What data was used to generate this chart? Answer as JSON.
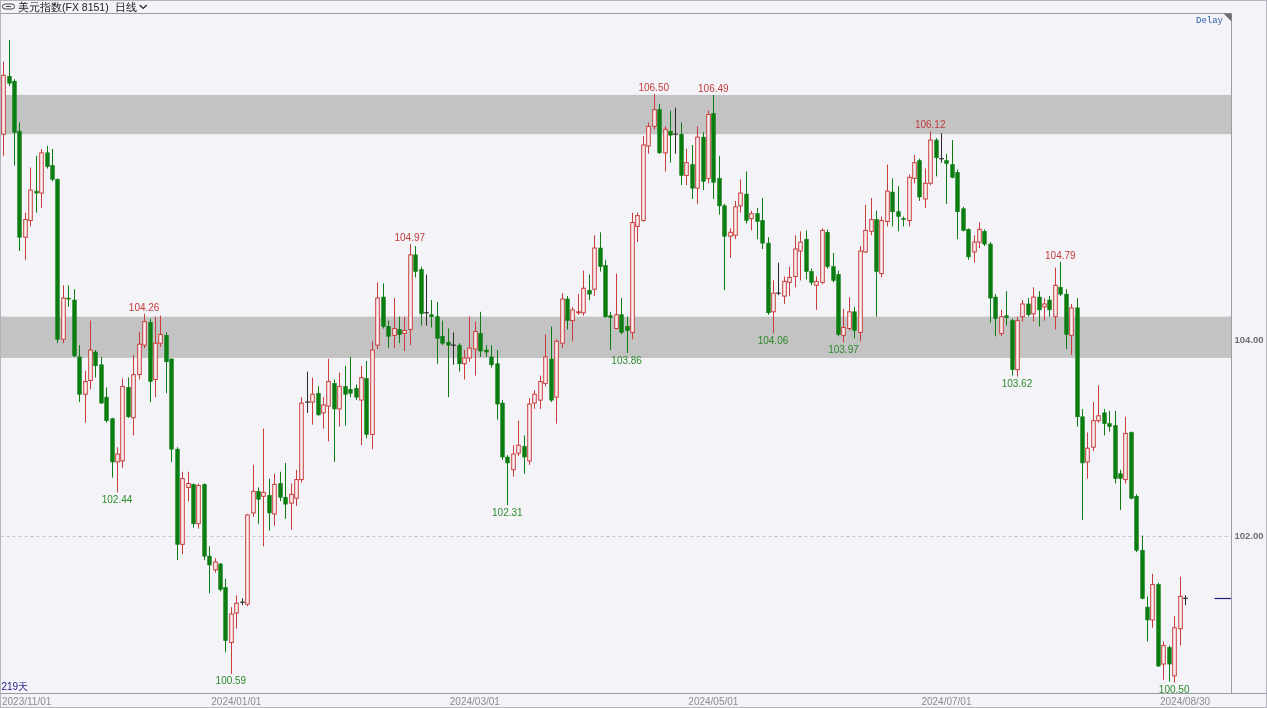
{
  "chart_data": {
    "type": "candlestick",
    "title": "美元指数(FX 8151)",
    "subtitle": "日线",
    "categories": [
      null,
      null,
      null,
      null,
      "2023/11/01",
      null,
      null,
      null,
      null,
      null,
      null,
      null,
      null,
      null,
      null,
      null,
      null,
      null,
      null,
      null,
      null,
      null,
      null,
      null,
      null,
      null,
      null,
      null,
      null,
      null,
      null,
      null,
      null,
      null,
      null,
      null,
      null,
      null,
      null,
      null,
      null,
      null,
      null,
      "2024/01/01",
      null,
      null,
      null,
      null,
      null,
      null,
      null,
      null,
      null,
      null,
      null,
      null,
      null,
      null,
      null,
      null,
      null,
      null,
      null,
      null,
      null,
      null,
      null,
      null,
      null,
      null,
      null,
      null,
      null,
      null,
      null,
      null,
      null,
      null,
      null,
      null,
      null,
      null,
      null,
      null,
      null,
      null,
      null,
      "2024/03/01",
      null,
      null,
      null,
      null,
      null,
      null,
      null,
      null,
      null,
      null,
      null,
      null,
      null,
      null,
      null,
      null,
      null,
      null,
      null,
      null,
      null,
      null,
      null,
      null,
      null,
      null,
      null,
      null,
      null,
      null,
      null,
      null,
      null,
      null,
      null,
      null,
      null,
      null,
      null,
      null,
      null,
      null,
      null,
      "2024/05/01",
      null,
      null,
      null,
      null,
      null,
      null,
      null,
      null,
      null,
      null,
      null,
      null,
      null,
      null,
      null,
      null,
      null,
      null,
      null,
      null,
      null,
      null,
      null,
      null,
      null,
      null,
      null,
      null,
      null,
      null,
      null,
      null,
      null,
      null,
      null,
      null,
      null,
      null,
      null,
      null,
      null,
      null,
      "2024/07/01",
      null,
      null,
      null,
      null,
      null,
      null,
      null,
      null,
      null,
      null,
      null,
      null,
      null,
      null,
      null,
      null,
      null,
      null,
      null,
      null,
      null,
      null,
      null,
      null,
      null,
      null,
      null,
      null,
      null,
      null,
      null,
      null,
      null,
      null,
      null,
      null,
      null,
      null,
      null,
      null,
      null,
      null,
      null,
      "2024/08/30"
    ],
    "ohlc": [
      [
        106.09,
        106.83,
        105.87,
        106.69
      ],
      [
        106.68,
        107.05,
        106.58,
        106.61
      ],
      [
        106.63,
        106.65,
        105.77,
        106.11
      ],
      [
        106.12,
        106.21,
        104.9,
        105.04
      ],
      [
        105.04,
        105.29,
        104.81,
        105.22
      ],
      [
        105.21,
        105.75,
        105.15,
        105.52
      ],
      [
        105.51,
        105.87,
        105.29,
        105.49
      ],
      [
        105.49,
        105.94,
        105.34,
        105.9
      ],
      [
        105.9,
        105.97,
        105.74,
        105.76
      ],
      [
        105.77,
        105.94,
        105.61,
        105.63
      ],
      [
        105.63,
        105.64,
        103.96,
        104.0
      ],
      [
        104.0,
        104.55,
        103.96,
        104.42
      ],
      [
        104.42,
        104.55,
        104.33,
        104.41
      ],
      [
        104.4,
        104.51,
        103.82,
        103.83
      ],
      [
        103.82,
        103.94,
        103.36,
        103.44
      ],
      [
        103.44,
        103.68,
        103.15,
        103.57
      ],
      [
        103.58,
        104.19,
        103.49,
        103.89
      ],
      [
        103.87,
        103.89,
        103.61,
        103.73
      ],
      [
        103.74,
        103.82,
        103.34,
        103.35
      ],
      [
        103.41,
        103.51,
        103.15,
        103.17
      ],
      [
        103.19,
        103.2,
        102.59,
        102.75
      ],
      [
        102.75,
        102.9,
        102.44,
        102.83
      ],
      [
        102.76,
        103.6,
        102.69,
        103.52
      ],
      [
        103.51,
        103.61,
        103.2,
        103.21
      ],
      [
        103.2,
        103.84,
        103.02,
        103.64
      ],
      [
        103.64,
        104.07,
        103.59,
        103.95
      ],
      [
        103.94,
        104.26,
        103.91,
        104.18
      ],
      [
        104.17,
        104.21,
        103.36,
        103.57
      ],
      [
        103.59,
        104.23,
        103.41,
        103.96
      ],
      [
        103.96,
        104.24,
        103.92,
        104.05
      ],
      [
        104.04,
        104.07,
        103.45,
        103.77
      ],
      [
        103.8,
        103.8,
        102.75,
        102.88
      ],
      [
        102.88,
        102.9,
        101.75,
        101.91
      ],
      [
        101.91,
        102.65,
        101.81,
        102.58
      ],
      [
        102.49,
        102.65,
        102.35,
        102.53
      ],
      [
        102.52,
        102.53,
        102.08,
        102.12
      ],
      [
        102.12,
        102.53,
        102.07,
        102.51
      ],
      [
        102.52,
        102.53,
        101.75,
        101.79
      ],
      [
        101.79,
        101.89,
        101.41,
        101.7
      ],
      [
        101.65,
        101.77,
        101.62,
        101.73
      ],
      [
        101.71,
        101.72,
        101.43,
        101.45
      ],
      [
        101.47,
        101.56,
        100.81,
        100.93
      ],
      [
        100.91,
        101.27,
        100.59,
        101.2
      ],
      [
        101.21,
        101.39,
        101.05,
        101.31
      ],
      [
        101.32,
        101.36,
        101.29,
        101.32
      ],
      [
        101.3,
        102.22,
        101.28,
        102.21
      ],
      [
        102.23,
        102.72,
        102.19,
        102.45
      ],
      [
        102.45,
        102.49,
        102.12,
        102.37
      ],
      [
        102.4,
        103.09,
        101.89,
        102.44
      ],
      [
        102.41,
        102.58,
        102.05,
        102.23
      ],
      [
        102.22,
        102.63,
        102.1,
        102.52
      ],
      [
        102.53,
        102.65,
        102.35,
        102.39
      ],
      [
        102.39,
        102.74,
        102.17,
        102.32
      ],
      [
        102.33,
        102.53,
        102.06,
        102.42
      ],
      [
        102.38,
        102.67,
        102.3,
        102.57
      ],
      [
        102.57,
        103.41,
        102.54,
        103.35
      ],
      [
        103.36,
        103.67,
        103.25,
        103.36
      ],
      [
        103.36,
        103.61,
        103.13,
        103.44
      ],
      [
        103.45,
        103.52,
        103.22,
        103.23
      ],
      [
        103.25,
        103.41,
        103.09,
        103.33
      ],
      [
        103.32,
        103.8,
        102.96,
        103.57
      ],
      [
        103.55,
        103.59,
        102.75,
        103.29
      ],
      [
        103.29,
        103.66,
        103.11,
        103.52
      ],
      [
        103.52,
        103.73,
        103.12,
        103.44
      ],
      [
        103.49,
        103.82,
        103.41,
        103.45
      ],
      [
        103.5,
        103.54,
        103.38,
        103.41
      ],
      [
        103.38,
        103.73,
        102.92,
        103.61
      ],
      [
        103.6,
        103.78,
        102.99,
        103.03
      ],
      [
        103.03,
        103.98,
        102.88,
        103.89
      ],
      [
        103.94,
        104.58,
        103.9,
        104.42
      ],
      [
        104.43,
        104.57,
        104.11,
        104.13
      ],
      [
        104.13,
        104.19,
        103.91,
        104.03
      ],
      [
        104.04,
        104.42,
        103.91,
        104.11
      ],
      [
        104.1,
        104.23,
        103.96,
        104.05
      ],
      [
        104.06,
        104.23,
        103.88,
        104.09
      ],
      [
        104.1,
        104.97,
        103.94,
        104.86
      ],
      [
        104.86,
        104.95,
        104.63,
        104.69
      ],
      [
        104.71,
        104.74,
        104.14,
        104.26
      ],
      [
        104.27,
        104.66,
        104.14,
        104.27
      ],
      [
        104.25,
        104.4,
        104.12,
        104.23
      ],
      [
        104.23,
        104.38,
        103.75,
        104.01
      ],
      [
        104.03,
        104.19,
        103.94,
        103.96
      ],
      [
        103.97,
        104.11,
        103.41,
        103.94
      ],
      [
        103.94,
        104.07,
        103.74,
        103.94
      ],
      [
        103.94,
        103.96,
        103.67,
        103.75
      ],
      [
        103.75,
        103.89,
        103.59,
        103.81
      ],
      [
        103.81,
        104.23,
        103.77,
        103.91
      ],
      [
        103.9,
        104.18,
        103.63,
        104.08
      ],
      [
        104.06,
        104.28,
        103.82,
        103.88
      ],
      [
        103.89,
        103.94,
        103.82,
        103.87
      ],
      [
        103.82,
        103.94,
        103.71,
        103.74
      ],
      [
        103.75,
        103.89,
        103.18,
        103.34
      ],
      [
        103.35,
        103.38,
        102.77,
        102.8
      ],
      [
        102.8,
        102.82,
        102.31,
        102.74
      ],
      [
        102.67,
        102.92,
        102.6,
        102.83
      ],
      [
        102.84,
        103.17,
        102.81,
        102.92
      ],
      [
        102.91,
        103.02,
        102.63,
        102.8
      ],
      [
        102.76,
        103.4,
        102.72,
        103.34
      ],
      [
        103.35,
        103.48,
        103.29,
        103.44
      ],
      [
        103.38,
        103.63,
        103.29,
        103.57
      ],
      [
        103.55,
        104.05,
        103.52,
        103.82
      ],
      [
        103.8,
        104.13,
        103.36,
        103.38
      ],
      [
        103.41,
        104.0,
        103.14,
        103.98
      ],
      [
        103.96,
        104.47,
        103.91,
        104.41
      ],
      [
        104.41,
        104.44,
        104.1,
        104.19
      ],
      [
        104.19,
        104.33,
        103.98,
        104.3
      ],
      [
        104.27,
        104.46,
        104.25,
        104.28
      ],
      [
        104.27,
        104.7,
        104.24,
        104.52
      ],
      [
        104.5,
        104.66,
        104.4,
        104.46
      ],
      [
        104.51,
        105.06,
        104.44,
        104.93
      ],
      [
        104.93,
        105.09,
        104.69,
        104.74
      ],
      [
        104.75,
        104.81,
        104.22,
        104.23
      ],
      [
        104.24,
        104.28,
        103.89,
        104.22
      ],
      [
        104.11,
        104.67,
        104.1,
        104.25
      ],
      [
        104.25,
        104.42,
        104.05,
        104.07
      ],
      [
        104.13,
        104.23,
        103.86,
        104.09
      ],
      [
        104.07,
        105.29,
        104.0,
        105.19
      ],
      [
        105.15,
        105.29,
        104.99,
        105.26
      ],
      [
        105.21,
        106.07,
        105.2,
        105.98
      ],
      [
        105.97,
        106.21,
        105.89,
        106.17
      ],
      [
        106.17,
        106.5,
        106.14,
        106.34
      ],
      [
        106.34,
        106.4,
        105.89,
        105.9
      ],
      [
        105.9,
        106.17,
        105.71,
        106.14
      ],
      [
        106.12,
        106.33,
        105.8,
        106.08
      ],
      [
        106.09,
        106.36,
        105.89,
        106.09
      ],
      [
        106.09,
        106.21,
        105.57,
        105.67
      ],
      [
        105.67,
        105.94,
        105.57,
        105.8
      ],
      [
        105.78,
        105.98,
        105.43,
        105.54
      ],
      [
        105.54,
        106.17,
        105.38,
        106.06
      ],
      [
        106.06,
        106.11,
        105.52,
        105.61
      ],
      [
        105.64,
        106.33,
        105.59,
        106.29
      ],
      [
        106.3,
        106.49,
        105.43,
        105.6
      ],
      [
        105.64,
        105.87,
        105.27,
        105.36
      ],
      [
        105.36,
        105.38,
        104.5,
        105.05
      ],
      [
        105.05,
        105.13,
        104.83,
        105.09
      ],
      [
        105.06,
        105.41,
        105.02,
        105.35
      ],
      [
        105.36,
        105.63,
        105.29,
        105.49
      ],
      [
        105.48,
        105.71,
        105.18,
        105.21
      ],
      [
        105.23,
        105.31,
        105.11,
        105.28
      ],
      [
        105.28,
        105.34,
        105.02,
        105.2
      ],
      [
        105.21,
        105.44,
        104.92,
        104.98
      ],
      [
        104.98,
        105.04,
        104.25,
        104.27
      ],
      [
        104.28,
        104.6,
        104.06,
        104.47
      ],
      [
        104.47,
        104.78,
        104.45,
        104.47
      ],
      [
        104.44,
        104.64,
        104.36,
        104.59
      ],
      [
        104.58,
        104.74,
        104.44,
        104.63
      ],
      [
        104.64,
        105.06,
        104.53,
        104.92
      ],
      [
        104.9,
        105.1,
        104.6,
        104.99
      ],
      [
        105.02,
        105.11,
        104.61,
        104.69
      ],
      [
        104.69,
        104.72,
        104.55,
        104.58
      ],
      [
        104.55,
        104.64,
        104.3,
        104.59
      ],
      [
        104.58,
        105.13,
        104.56,
        105.11
      ],
      [
        105.09,
        105.12,
        104.72,
        104.74
      ],
      [
        104.74,
        104.88,
        104.58,
        104.6
      ],
      [
        104.66,
        104.7,
        104.03,
        104.05
      ],
      [
        104.04,
        104.31,
        103.97,
        104.12
      ],
      [
        104.11,
        104.43,
        104.09,
        104.28
      ],
      [
        104.28,
        104.33,
        104.01,
        104.09
      ],
      [
        104.07,
        104.95,
        103.98,
        104.9
      ],
      [
        104.89,
        105.37,
        104.88,
        105.11
      ],
      [
        105.1,
        105.44,
        105.06,
        105.22
      ],
      [
        105.22,
        105.31,
        104.23,
        104.69
      ],
      [
        104.67,
        105.25,
        104.63,
        105.21
      ],
      [
        105.2,
        105.78,
        105.15,
        105.51
      ],
      [
        105.5,
        105.64,
        105.15,
        105.3
      ],
      [
        105.3,
        105.56,
        105.1,
        105.25
      ],
      [
        105.23,
        105.25,
        105.15,
        105.22
      ],
      [
        105.21,
        105.68,
        105.15,
        105.65
      ],
      [
        105.64,
        105.88,
        105.59,
        105.8
      ],
      [
        105.82,
        105.84,
        105.41,
        105.45
      ],
      [
        105.43,
        105.74,
        105.34,
        105.59
      ],
      [
        105.59,
        106.12,
        105.57,
        106.03
      ],
      [
        106.03,
        106.05,
        105.66,
        105.85
      ],
      [
        105.84,
        106.1,
        105.8,
        105.84
      ],
      [
        105.82,
        105.89,
        105.38,
        105.79
      ],
      [
        105.78,
        106.03,
        105.64,
        105.65
      ],
      [
        105.7,
        105.73,
        105.02,
        105.3
      ],
      [
        105.33,
        105.35,
        105.1,
        105.11
      ],
      [
        105.12,
        105.13,
        104.81,
        104.84
      ],
      [
        104.89,
        105.06,
        104.78,
        104.99
      ],
      [
        104.99,
        105.19,
        104.93,
        105.12
      ],
      [
        105.1,
        105.12,
        104.95,
        104.97
      ],
      [
        104.97,
        104.99,
        104.17,
        104.42
      ],
      [
        104.43,
        104.46,
        104.03,
        104.21
      ],
      [
        104.06,
        104.3,
        104.03,
        104.23
      ],
      [
        104.24,
        104.49,
        104.14,
        104.22
      ],
      [
        104.19,
        104.21,
        103.63,
        103.69
      ],
      [
        103.69,
        104.23,
        103.62,
        104.19
      ],
      [
        104.23,
        104.4,
        104.18,
        104.36
      ],
      [
        104.36,
        104.42,
        104.23,
        104.25
      ],
      [
        104.26,
        104.53,
        104.18,
        104.43
      ],
      [
        104.43,
        104.49,
        104.13,
        104.3
      ],
      [
        104.33,
        104.42,
        104.19,
        104.36
      ],
      [
        104.4,
        104.44,
        104.23,
        104.3
      ],
      [
        104.23,
        104.73,
        104.1,
        104.55
      ],
      [
        104.53,
        104.79,
        104.44,
        104.46
      ],
      [
        104.46,
        104.51,
        103.9,
        104.05
      ],
      [
        104.04,
        104.36,
        103.84,
        104.32
      ],
      [
        104.32,
        104.42,
        103.11,
        103.21
      ],
      [
        103.21,
        103.29,
        102.16,
        102.74
      ],
      [
        102.75,
        103.05,
        102.58,
        102.89
      ],
      [
        102.9,
        103.36,
        102.86,
        103.17
      ],
      [
        103.17,
        103.53,
        103.15,
        103.22
      ],
      [
        103.25,
        103.29,
        103.02,
        103.14
      ],
      [
        103.14,
        103.27,
        103.06,
        103.11
      ],
      [
        103.12,
        103.27,
        102.53,
        102.58
      ],
      [
        102.63,
        102.67,
        102.26,
        102.58
      ],
      [
        102.57,
        103.21,
        102.53,
        103.04
      ],
      [
        103.05,
        103.06,
        102.37,
        102.38
      ],
      [
        102.4,
        102.42,
        101.83,
        101.85
      ],
      [
        101.85,
        102.0,
        101.35,
        101.36
      ],
      [
        101.27,
        101.38,
        100.92,
        101.14
      ],
      [
        101.14,
        101.61,
        101.06,
        101.5
      ],
      [
        101.5,
        101.52,
        100.66,
        100.67
      ],
      [
        100.69,
        100.92,
        100.53,
        100.88
      ],
      [
        100.86,
        100.88,
        100.51,
        100.69
      ],
      [
        100.57,
        101.18,
        100.5,
        101.06
      ],
      [
        101.05,
        101.58,
        100.88,
        101.38
      ],
      [
        101.36,
        101.39,
        101.29,
        101.36
      ]
    ],
    "ylim": [
      100.39,
      107.32
    ],
    "yticks": [
      {
        "value": 102,
        "label": "102.00"
      },
      {
        "value": 104,
        "label": "104.00"
      }
    ],
    "grid": "y",
    "bands": [
      {
        "axis": "y",
        "from": 106.09,
        "to": 106.49,
        "color": "#c3c3c3"
      },
      {
        "axis": "y",
        "from": 103.81,
        "to": 104.23,
        "color": "#c3c3c3"
      }
    ],
    "annotations": [
      {
        "text": "106.50",
        "y": 106.5
      },
      {
        "text": "106.49",
        "y": 106.49
      },
      {
        "text": "106.12",
        "y": 106.12
      },
      {
        "text": "104.97",
        "y": 104.97
      },
      {
        "text": "104.79",
        "y": 104.79
      },
      {
        "text": "104.26",
        "y": 104.26
      },
      {
        "text": "102.44",
        "y": 102.44
      },
      {
        "text": "100.59",
        "y": 100.59
      },
      {
        "text": "102.31",
        "y": 102.31
      },
      {
        "text": "103.86",
        "y": 103.86
      },
      {
        "text": "104.06",
        "y": 104.06
      },
      {
        "text": "103.97",
        "y": 103.97
      },
      {
        "text": "103.62",
        "y": 103.62
      },
      {
        "text": "100.50",
        "y": 100.5
      },
      "Delay",
      "219天"
    ]
  }
}
